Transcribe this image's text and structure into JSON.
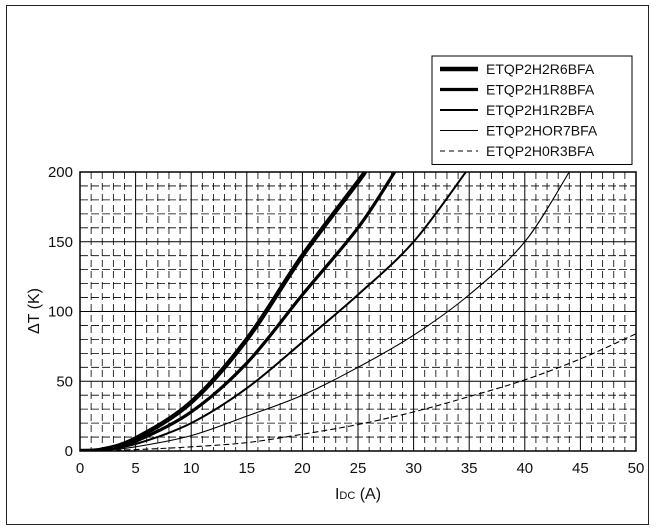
{
  "chart_data": {
    "type": "line",
    "xlabel": "I",
    "xlabel_sub": "DC",
    "xlabel_unit": " (A)",
    "ylabel": "ΔT (K)",
    "xlim": [
      0,
      50
    ],
    "ylim": [
      0,
      200
    ],
    "xticks": [
      "0",
      "5",
      "10",
      "15",
      "20",
      "25",
      "30",
      "35",
      "40",
      "45",
      "50"
    ],
    "yticks": [
      "0",
      "50",
      "100",
      "150",
      "200"
    ],
    "grid": true,
    "legend_position": "top-right",
    "series": [
      {
        "name": "ETQP2H2R6BFA",
        "style": "extra-thick",
        "x": [
          0,
          2,
          5,
          10,
          15,
          20,
          25,
          25.6
        ],
        "y": [
          0,
          1,
          9,
          35,
          80,
          140,
          193,
          200
        ]
      },
      {
        "name": "ETQP2H1R8BFA",
        "style": "thick",
        "x": [
          0,
          2,
          5,
          10,
          15,
          20,
          25,
          28.3
        ],
        "y": [
          0,
          1,
          7,
          28,
          63,
          112,
          160,
          200
        ]
      },
      {
        "name": "ETQP2H1R2BFA",
        "style": "medium",
        "x": [
          0,
          2,
          5,
          10,
          15,
          20,
          25,
          30,
          34.7
        ],
        "y": [
          0,
          1,
          5,
          20,
          45,
          78,
          112,
          150,
          200
        ]
      },
      {
        "name": "ETQP2HOR7BFA",
        "style": "thin",
        "x": [
          0,
          2,
          5,
          10,
          15,
          20,
          25,
          30,
          35,
          40,
          44
        ],
        "y": [
          0,
          0.5,
          3,
          11,
          25,
          40,
          60,
          83,
          112,
          150,
          200
        ]
      },
      {
        "name": "ETQP2H0R3BFA",
        "style": "dashed",
        "x": [
          0,
          5,
          10,
          15,
          20,
          25,
          30,
          35,
          40,
          45,
          50
        ],
        "y": [
          0,
          1,
          3,
          6,
          12,
          19,
          28,
          39,
          51,
          66,
          84
        ]
      }
    ]
  }
}
